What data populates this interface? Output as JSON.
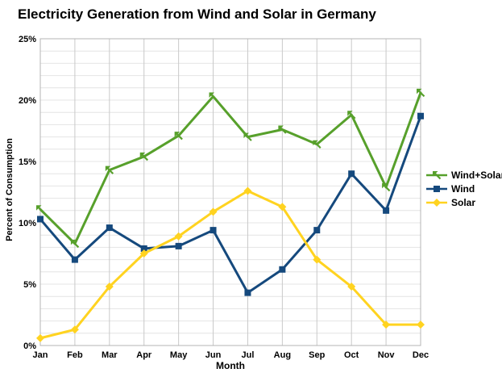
{
  "chart_data": {
    "type": "line",
    "title": "Electricity Generation from Wind and Solar in Germany",
    "xlabel": "Month",
    "ylabel": "Percent of Consumption",
    "categories": [
      "Jan",
      "Feb",
      "Mar",
      "Apr",
      "May",
      "Jun",
      "Jul",
      "Aug",
      "Sep",
      "Oct",
      "Nov",
      "Dec"
    ],
    "y_axis": {
      "min": 0,
      "max": 25,
      "major_step": 5,
      "minor_step": 1,
      "tick_labels": [
        "0%",
        "5%",
        "10%",
        "15%",
        "20%",
        "25%"
      ]
    },
    "grid": {
      "horizontal_minor": true,
      "vertical_major": true
    },
    "legend_position": "right",
    "colors": {
      "grid_minor": "#e4e4e4",
      "grid_vertical": "#c9c9c9",
      "plot_border": "#b4b4b4",
      "text": "#000000"
    },
    "series": [
      {
        "id": "wind_solar",
        "name": "Wind+Solar",
        "color": "#57A02B",
        "marker": "arrow",
        "values": [
          11.1,
          8.3,
          14.3,
          15.4,
          17.1,
          20.3,
          17.0,
          17.6,
          16.4,
          18.8,
          12.9,
          20.6
        ]
      },
      {
        "id": "wind",
        "name": "Wind",
        "color": "#15497D",
        "marker": "square",
        "values": [
          10.3,
          7.0,
          9.6,
          7.9,
          8.1,
          9.4,
          4.3,
          6.2,
          9.4,
          14.0,
          11.0,
          18.7
        ]
      },
      {
        "id": "solar",
        "name": "Solar",
        "color": "#FFD320",
        "marker": "diamond",
        "values": [
          0.6,
          1.3,
          4.8,
          7.5,
          8.9,
          10.9,
          12.6,
          11.3,
          7.0,
          4.8,
          1.7,
          1.7
        ]
      }
    ]
  }
}
